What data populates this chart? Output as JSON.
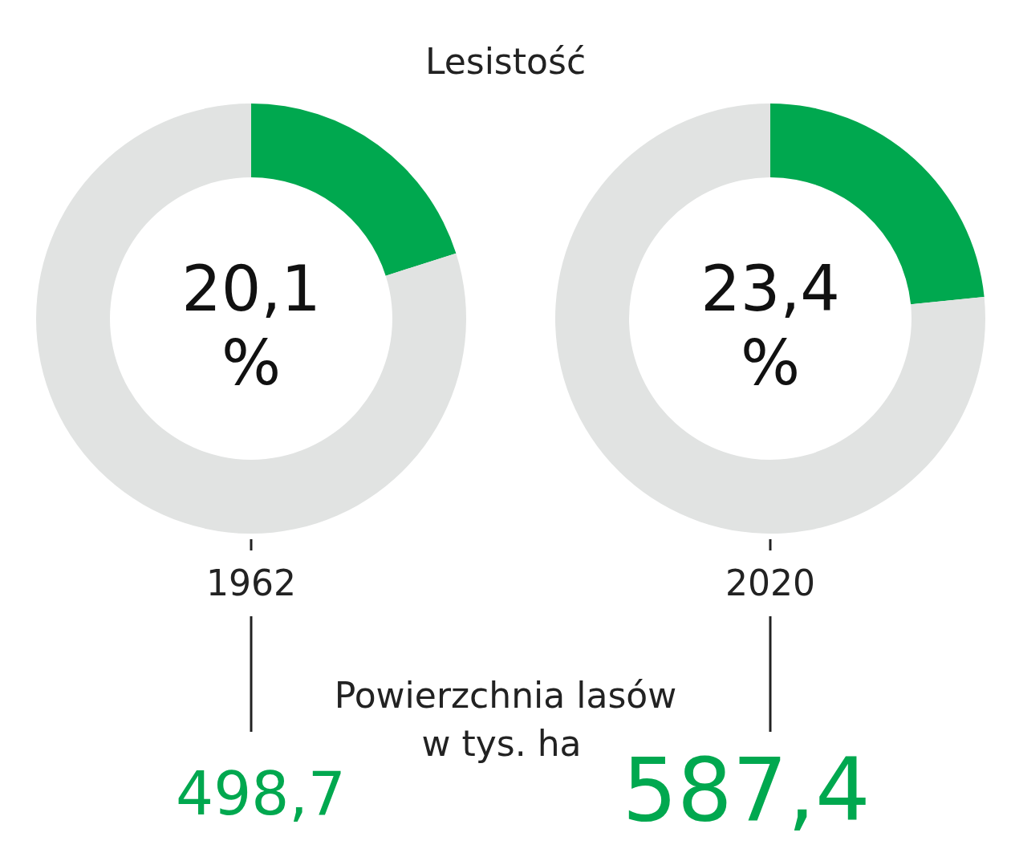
{
  "chart_data": [
    {
      "type": "donut",
      "title": "Lesistość",
      "xlabel": "1962",
      "categories": [
        null,
        null
      ],
      "values": [
        20.1,
        79.9
      ],
      "colors": [
        "#00a84f",
        "#e1e3e2"
      ],
      "annotations": [
        "20,1 %"
      ]
    },
    {
      "type": "donut",
      "xlabel": "2020",
      "categories": [
        null,
        null
      ],
      "values": [
        23.4,
        76.6
      ],
      "colors": [
        "#00a84f",
        "#e1e3e2"
      ],
      "annotations": [
        "23,4 %"
      ]
    },
    {
      "type": "other",
      "title": "Powierzchnia lasów w tys. ha",
      "color": "#00a84f",
      "annotations": [
        "498,7",
        "587,4"
      ]
    }
  ]
}
